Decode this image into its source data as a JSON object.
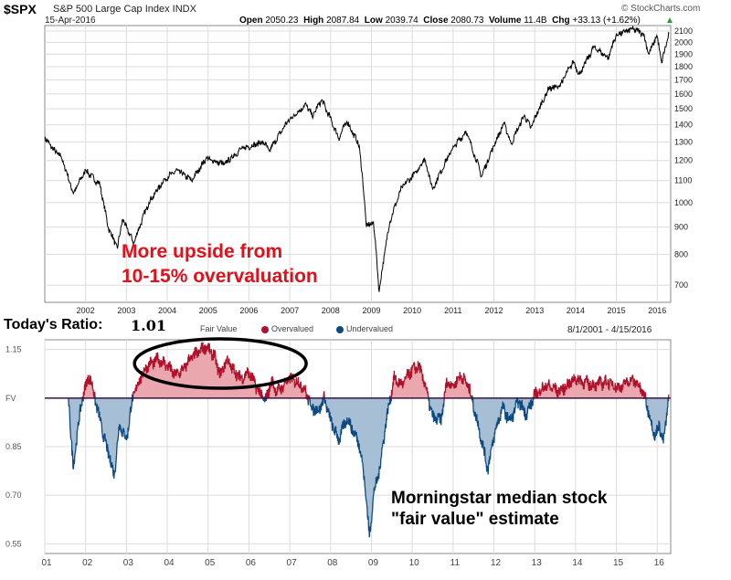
{
  "header": {
    "symbol": "$SPX",
    "name": "S&P 500 Large Cap Index INDX",
    "date": "15-Apr-2016",
    "open_label": "Open",
    "open": "2050.23",
    "high_label": "High",
    "high": "2087.84",
    "low_label": "Low",
    "low": "2039.74",
    "close_label": "Close",
    "close": "2080.73",
    "volume_label": "Volume",
    "volume": "11.4B",
    "chg_label": "Chg",
    "chg": "+33.13 (+1.62%)",
    "brand": "© StockCharts.com",
    "up_arrow": "▲"
  },
  "annotations": {
    "upside_line1": "More upside from",
    "upside_line2": "10-15% overvaluation",
    "ms_line1": "Morningstar median stock",
    "ms_line2": "\"fair value\" estimate"
  },
  "ratio_panel": {
    "title": "Today's Ratio:",
    "value": "1.01",
    "range": "8/1/2001 - 4/15/2016",
    "legend_fair": "Fair Value",
    "legend_over": "Overvalued",
    "legend_under": "Undervalued"
  },
  "colors": {
    "price_line": "#000000",
    "over_fill": "#eaa7ad",
    "over_line": "#b0102a",
    "under_fill": "#a6bfd5",
    "under_line": "#0e4a82",
    "fv_line": "#3a1040",
    "annotation_red": "#e0111b",
    "grid": "#dcdcdc"
  },
  "chart_data": [
    {
      "type": "line",
      "title": "$SPX S&P 500 Large Cap Index INDX",
      "scale": "log",
      "x_ticks": [
        "2002",
        "2003",
        "2004",
        "2005",
        "2006",
        "2007",
        "2008",
        "2009",
        "2010",
        "2011",
        "2012",
        "2013",
        "2014",
        "2015",
        "2016"
      ],
      "y_ticks": [
        700,
        800,
        900,
        1000,
        1100,
        1200,
        1300,
        1400,
        1500,
        1600,
        1700,
        1800,
        1900,
        2000,
        2100
      ],
      "ylim": [
        650,
        2150
      ],
      "series": [
        {
          "x": [
            2001.0,
            2001.25,
            2001.4,
            2001.7,
            2002.0,
            2002.35,
            2002.55,
            2002.78,
            2002.9,
            2003.18,
            2003.55,
            2003.95,
            2004.25,
            2004.6,
            2004.95,
            2005.4,
            2005.8,
            2006.35,
            2006.5,
            2006.95,
            2007.4,
            2007.55,
            2007.78,
            2008.2,
            2008.4,
            2008.7,
            2008.88,
            2009.05,
            2009.19,
            2009.45,
            2009.75,
            2010.1,
            2010.3,
            2010.5,
            2010.98,
            2011.32,
            2011.7,
            2012.0,
            2012.25,
            2012.42,
            2012.75,
            2012.9,
            2013.35,
            2013.6,
            2013.95,
            2014.1,
            2014.45,
            2014.8,
            2014.99,
            2015.39,
            2015.65,
            2015.8,
            2015.99,
            2016.11,
            2016.29
          ],
          "y": [
            1320,
            1250,
            1220,
            1040,
            1150,
            1080,
            900,
            820,
            930,
            840,
            1000,
            1110,
            1150,
            1100,
            1210,
            1180,
            1260,
            1300,
            1250,
            1420,
            1530,
            1450,
            1560,
            1320,
            1420,
            1280,
            900,
            920,
            680,
            920,
            1070,
            1140,
            1210,
            1060,
            1260,
            1360,
            1120,
            1280,
            1410,
            1290,
            1460,
            1380,
            1640,
            1650,
            1840,
            1740,
            1960,
            1870,
            2060,
            2120,
            2080,
            1900,
            2060,
            1830,
            2080
          ]
        }
      ]
    },
    {
      "type": "area",
      "title": "Today's Ratio: 1.01",
      "fair_value": 1.0,
      "y_ticks": [
        1.15,
        1.0,
        0.85,
        0.7,
        0.55
      ],
      "y_tick_labels": [
        "1.15",
        "FV",
        "0.85",
        "0.70",
        "0.55"
      ],
      "x_ticks": [
        "01",
        "02",
        "03",
        "04",
        "05",
        "06",
        "07",
        "08",
        "09",
        "10",
        "11",
        "12",
        "13",
        "14",
        "15",
        "16"
      ],
      "ylim": [
        0.52,
        1.18
      ],
      "legend": [
        "Fair Value",
        "Overvalued",
        "Undervalued"
      ],
      "series": [
        {
          "name": "Ratio",
          "x": [
            2001.58,
            2001.7,
            2001.8,
            2001.95,
            2002.1,
            2002.3,
            2002.45,
            2002.58,
            2002.7,
            2002.83,
            2003.0,
            2003.15,
            2003.3,
            2003.5,
            2003.8,
            2004.0,
            2004.2,
            2004.4,
            2004.55,
            2004.75,
            2004.95,
            2005.15,
            2005.3,
            2005.45,
            2005.6,
            2005.8,
            2006.0,
            2006.2,
            2006.4,
            2006.55,
            2006.7,
            2006.85,
            2007.0,
            2007.2,
            2007.35,
            2007.55,
            2007.7,
            2007.85,
            2008.0,
            2008.2,
            2008.4,
            2008.55,
            2008.7,
            2008.8,
            2008.88,
            2008.95,
            2009.05,
            2009.2,
            2009.35,
            2009.55,
            2009.75,
            2009.95,
            2010.15,
            2010.3,
            2010.5,
            2010.7,
            2010.85,
            2011.0,
            2011.2,
            2011.4,
            2011.55,
            2011.7,
            2011.85,
            2012.0,
            2012.2,
            2012.4,
            2012.6,
            2012.8,
            2013.0,
            2013.3,
            2013.6,
            2014.0,
            2014.4,
            2014.8,
            2015.1,
            2015.35,
            2015.55,
            2015.7,
            2015.85,
            2015.95,
            2016.05,
            2016.15,
            2016.29
          ],
          "values": [
            1.0,
            0.78,
            0.9,
            1.02,
            1.07,
            0.96,
            0.88,
            0.82,
            0.76,
            0.92,
            0.87,
            1.0,
            1.05,
            1.1,
            1.12,
            1.1,
            1.07,
            1.09,
            1.12,
            1.14,
            1.16,
            1.13,
            1.07,
            1.12,
            1.09,
            1.06,
            1.08,
            1.03,
            0.99,
            1.05,
            1.02,
            1.04,
            1.06,
            1.05,
            1.03,
            0.97,
            0.96,
            1.0,
            0.93,
            0.87,
            0.94,
            0.9,
            0.86,
            0.78,
            0.68,
            0.57,
            0.7,
            0.78,
            0.92,
            1.06,
            1.04,
            1.08,
            1.1,
            1.05,
            0.94,
            0.93,
            1.05,
            1.04,
            1.07,
            1.03,
            0.95,
            0.87,
            0.78,
            0.88,
            0.97,
            0.93,
            0.99,
            0.95,
            1.01,
            1.04,
            1.02,
            1.06,
            1.04,
            1.05,
            1.03,
            1.06,
            1.04,
            1.0,
            0.93,
            0.88,
            0.92,
            0.86,
            1.01
          ]
        }
      ]
    }
  ]
}
